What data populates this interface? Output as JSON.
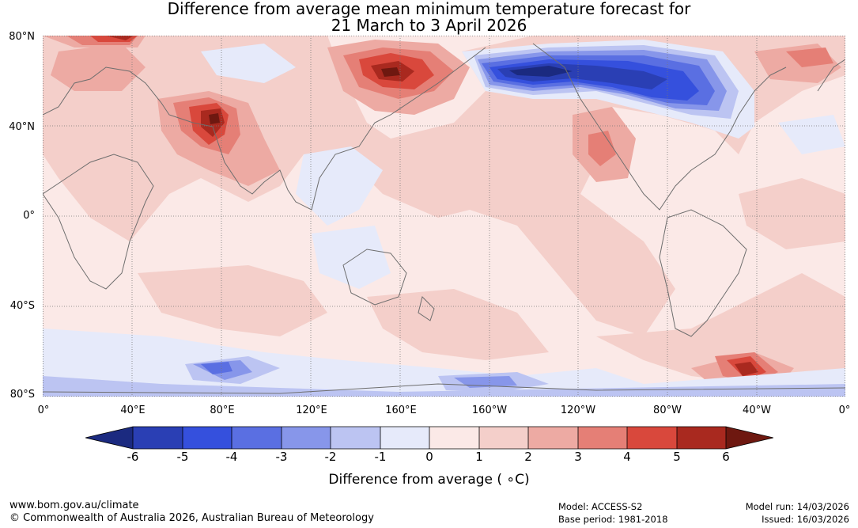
{
  "title": {
    "line1": "Difference from average mean minimum temperature forecast for",
    "line2": "21 March to 3 April 2026"
  },
  "lat_labels": [
    "80°N",
    "40°N",
    "0°",
    "40°S",
    "80°S"
  ],
  "lon_labels": [
    "0°",
    "40°E",
    "80°E",
    "120°E",
    "160°E",
    "160°W",
    "120°W",
    "80°W",
    "40°W",
    "0°"
  ],
  "colorbar": {
    "ticks": [
      "-6",
      "-5",
      "-4",
      "-3",
      "-2",
      "-1",
      "0",
      "1",
      "2",
      "3",
      "4",
      "5",
      "6"
    ],
    "colors": [
      "#1b2a80",
      "#2a3fb4",
      "#3550dd",
      "#5a6fe2",
      "#8796ea",
      "#bcc4f2",
      "#e6eafa",
      "#fbe9e7",
      "#f4cfca",
      "#edaaa3",
      "#e57f76",
      "#d9483c",
      "#a9291f",
      "#6e1810"
    ],
    "label": "Difference from average ( ∘C)"
  },
  "footer": {
    "site": "www.bom.gov.au/climate",
    "copyright": "© Commonwealth of Australia 2026, Australian Bureau of Meteorology",
    "model": "Model: ACCESS-S2",
    "base_period": "Base period: 1981-2018",
    "model_run": "Model run: 14/03/2026",
    "issued": "Issued: 16/03/2026"
  }
}
